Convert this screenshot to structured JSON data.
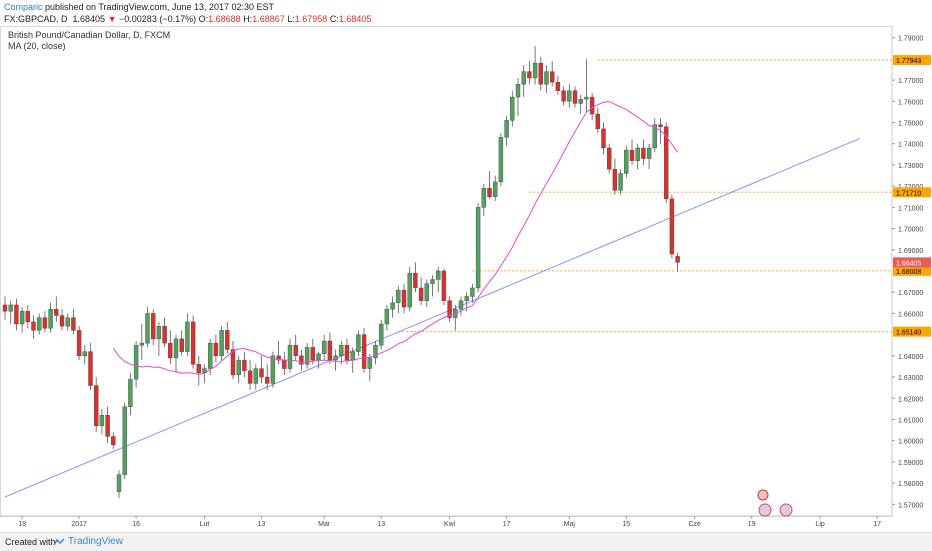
{
  "header": {
    "publisher": "Comparic",
    "published_text": " published on TradingView.com, June 13, 2017 02:30 EST",
    "symbol": "FX:GBPCAD, D",
    "last": "1.68405",
    "arrow": "▼",
    "change": "−0.00283 (−0.17%)",
    "open_label": "O:",
    "open": "1.68688",
    "high_label": "H:",
    "high": "1.68867",
    "low_label": "L:",
    "low": "1.67958",
    "close_label": "C:",
    "close": "1.68405"
  },
  "legend": {
    "title": "British Pound/Canadian Dollar, D, FXCM",
    "ma": "MA (20, close)"
  },
  "footer": {
    "created_with": "Created with",
    "brand": "TradingView"
  },
  "colors": {
    "up": "#53a060",
    "down": "#d6332c",
    "ma": "#e24cd6",
    "trend": "#8c8cff",
    "level": "#f5a623",
    "level_label_bg": "#ffa500",
    "last_label_bg": "#e95c55"
  },
  "chart_data": {
    "type": "candlestick",
    "symbol": "FX:GBPCAD",
    "x_ticks": [
      "19",
      "2017",
      "16",
      "Lut",
      "13",
      "Mar",
      "13",
      "Kwi",
      "17",
      "Maj",
      "15",
      "Cze",
      "19",
      "Lip",
      "17"
    ],
    "y_ticks": [
      "1.79000",
      "1.77000",
      "1.76000",
      "1.75000",
      "1.74000",
      "1.73000",
      "1.72000",
      "1.71000",
      "1.70000",
      "1.69000",
      "1.67000",
      "1.66000",
      "1.64000",
      "1.63000",
      "1.62000",
      "1.61000",
      "1.60000",
      "1.59000",
      "1.58000",
      "1.57000"
    ],
    "ylim": [
      1.5645,
      1.7955
    ],
    "level_lines": [
      {
        "value": 1.77943,
        "label": "1.77943"
      },
      {
        "value": 1.7171,
        "label": "1.71710"
      },
      {
        "value": 1.68008,
        "label": "1.68008"
      },
      {
        "value": 1.6514,
        "label": "1.65140"
      }
    ],
    "last_price": {
      "value": 1.68405,
      "label": "1.68405"
    },
    "trendline": {
      "from": {
        "day": 0,
        "value": 1.5735
      },
      "to": {
        "day": 150,
        "value": 1.7425
      }
    },
    "candles": [
      [
        1.664,
        1.668,
        1.657,
        1.661
      ],
      [
        1.661,
        1.666,
        1.655,
        1.664
      ],
      [
        1.664,
        1.667,
        1.652,
        1.655
      ],
      [
        1.655,
        1.663,
        1.651,
        1.661
      ],
      [
        1.661,
        1.664,
        1.653,
        1.656
      ],
      [
        1.656,
        1.659,
        1.648,
        1.652
      ],
      [
        1.652,
        1.66,
        1.65,
        1.658
      ],
      [
        1.658,
        1.661,
        1.651,
        1.653
      ],
      [
        1.653,
        1.665,
        1.651,
        1.662
      ],
      [
        1.662,
        1.668,
        1.656,
        1.659
      ],
      [
        1.659,
        1.662,
        1.652,
        1.654
      ],
      [
        1.654,
        1.66,
        1.652,
        1.658
      ],
      [
        1.658,
        1.662,
        1.65,
        1.652
      ],
      [
        1.652,
        1.654,
        1.638,
        1.64
      ],
      [
        1.64,
        1.645,
        1.636,
        1.642
      ],
      [
        1.642,
        1.646,
        1.624,
        1.626
      ],
      [
        1.626,
        1.63,
        1.604,
        1.607
      ],
      [
        1.607,
        1.615,
        1.603,
        1.612
      ],
      [
        1.612,
        1.616,
        1.599,
        1.602
      ],
      [
        1.602,
        1.604,
        1.596,
        1.598
      ],
      [
        1.576,
        1.586,
        1.573,
        1.584
      ],
      [
        1.584,
        1.618,
        1.582,
        1.616
      ],
      [
        1.616,
        1.632,
        1.612,
        1.629
      ],
      [
        1.629,
        1.647,
        1.625,
        1.645
      ],
      [
        1.645,
        1.655,
        1.638,
        1.646
      ],
      [
        1.646,
        1.663,
        1.644,
        1.66
      ],
      [
        1.66,
        1.662,
        1.645,
        1.648
      ],
      [
        1.648,
        1.656,
        1.64,
        1.654
      ],
      [
        1.654,
        1.658,
        1.644,
        1.646
      ],
      [
        1.646,
        1.652,
        1.636,
        1.639
      ],
      [
        1.639,
        1.65,
        1.632,
        1.648
      ],
      [
        1.648,
        1.652,
        1.64,
        1.642
      ],
      [
        1.642,
        1.66,
        1.64,
        1.656
      ],
      [
        1.656,
        1.659,
        1.634,
        1.636
      ],
      [
        1.636,
        1.64,
        1.626,
        1.632
      ],
      [
        1.632,
        1.636,
        1.627,
        1.634
      ],
      [
        1.634,
        1.648,
        1.631,
        1.646
      ],
      [
        1.646,
        1.65,
        1.637,
        1.64
      ],
      [
        1.64,
        1.654,
        1.638,
        1.652
      ],
      [
        1.652,
        1.656,
        1.641,
        1.643
      ],
      [
        1.643,
        1.647,
        1.629,
        1.631
      ],
      [
        1.631,
        1.64,
        1.627,
        1.638
      ],
      [
        1.638,
        1.642,
        1.63,
        1.633
      ],
      [
        1.633,
        1.638,
        1.624,
        1.627
      ],
      [
        1.627,
        1.636,
        1.624,
        1.634
      ],
      [
        1.634,
        1.64,
        1.627,
        1.63
      ],
      [
        1.63,
        1.636,
        1.624,
        1.627
      ],
      [
        1.627,
        1.642,
        1.625,
        1.64
      ],
      [
        1.64,
        1.647,
        1.636,
        1.638
      ],
      [
        1.638,
        1.642,
        1.631,
        1.634
      ],
      [
        1.634,
        1.648,
        1.632,
        1.645
      ],
      [
        1.645,
        1.65,
        1.638,
        1.64
      ],
      [
        1.64,
        1.643,
        1.633,
        1.636
      ],
      [
        1.636,
        1.646,
        1.634,
        1.644
      ],
      [
        1.644,
        1.648,
        1.636,
        1.638
      ],
      [
        1.638,
        1.642,
        1.634,
        1.641
      ],
      [
        1.641,
        1.65,
        1.638,
        1.647
      ],
      [
        1.647,
        1.651,
        1.636,
        1.638
      ],
      [
        1.638,
        1.643,
        1.633,
        1.64
      ],
      [
        1.64,
        1.647,
        1.636,
        1.645
      ],
      [
        1.645,
        1.648,
        1.636,
        1.638
      ],
      [
        1.638,
        1.644,
        1.632,
        1.642
      ],
      [
        1.642,
        1.652,
        1.64,
        1.65
      ],
      [
        1.65,
        1.653,
        1.632,
        1.634
      ],
      [
        1.634,
        1.641,
        1.628,
        1.639
      ],
      [
        1.639,
        1.647,
        1.636,
        1.645
      ],
      [
        1.645,
        1.657,
        1.643,
        1.655
      ],
      [
        1.655,
        1.664,
        1.652,
        1.662
      ],
      [
        1.662,
        1.668,
        1.658,
        1.665
      ],
      [
        1.665,
        1.673,
        1.66,
        1.671
      ],
      [
        1.671,
        1.674,
        1.66,
        1.663
      ],
      [
        1.663,
        1.682,
        1.661,
        1.679
      ],
      [
        1.679,
        1.684,
        1.67,
        1.672
      ],
      [
        1.672,
        1.677,
        1.664,
        1.666
      ],
      [
        1.666,
        1.676,
        1.663,
        1.674
      ],
      [
        1.674,
        1.678,
        1.668,
        1.676
      ],
      [
        1.676,
        1.682,
        1.67,
        1.68
      ],
      [
        1.68,
        1.681,
        1.664,
        1.666
      ],
      [
        1.666,
        1.668,
        1.656,
        1.658
      ],
      [
        1.658,
        1.664,
        1.652,
        1.662
      ],
      [
        1.662,
        1.668,
        1.659,
        1.666
      ],
      [
        1.666,
        1.67,
        1.661,
        1.668
      ],
      [
        1.668,
        1.674,
        1.665,
        1.672
      ],
      [
        1.672,
        1.712,
        1.67,
        1.71
      ],
      [
        1.71,
        1.721,
        1.706,
        1.719
      ],
      [
        1.719,
        1.727,
        1.714,
        1.715
      ],
      [
        1.715,
        1.725,
        1.713,
        1.722
      ],
      [
        1.722,
        1.745,
        1.72,
        1.743
      ],
      [
        1.743,
        1.753,
        1.739,
        1.751
      ],
      [
        1.751,
        1.765,
        1.748,
        1.762
      ],
      [
        1.762,
        1.771,
        1.753,
        1.768
      ],
      [
        1.768,
        1.777,
        1.762,
        1.774
      ],
      [
        1.774,
        1.779,
        1.768,
        1.771
      ],
      [
        1.771,
        1.786,
        1.768,
        1.778
      ],
      [
        1.778,
        1.781,
        1.765,
        1.768
      ],
      [
        1.768,
        1.777,
        1.764,
        1.774
      ],
      [
        1.774,
        1.779,
        1.767,
        1.769
      ],
      [
        1.769,
        1.772,
        1.763,
        1.765
      ],
      [
        1.765,
        1.767,
        1.758,
        1.76
      ],
      [
        1.76,
        1.768,
        1.757,
        1.765
      ],
      [
        1.765,
        1.767,
        1.757,
        1.759
      ],
      [
        1.759,
        1.763,
        1.754,
        1.761
      ],
      [
        1.761,
        1.78,
        1.755,
        1.762
      ],
      [
        1.762,
        1.764,
        1.751,
        1.754
      ],
      [
        1.754,
        1.757,
        1.745,
        1.747
      ],
      [
        1.747,
        1.75,
        1.735,
        1.738
      ],
      [
        1.738,
        1.74,
        1.726,
        1.728
      ],
      [
        1.728,
        1.733,
        1.716,
        1.718
      ],
      [
        1.718,
        1.728,
        1.716,
        1.726
      ],
      [
        1.726,
        1.739,
        1.724,
        1.737
      ],
      [
        1.737,
        1.742,
        1.73,
        1.732
      ],
      [
        1.732,
        1.74,
        1.728,
        1.738
      ],
      [
        1.738,
        1.742,
        1.73,
        1.733
      ],
      [
        1.733,
        1.74,
        1.728,
        1.738
      ],
      [
        1.738,
        1.752,
        1.736,
        1.749
      ],
      [
        1.749,
        1.752,
        1.74,
        1.748
      ],
      [
        1.748,
        1.75,
        1.712,
        1.714
      ],
      [
        1.714,
        1.716,
        1.686,
        1.688
      ],
      [
        1.68688,
        1.68867,
        1.67958,
        1.68405
      ]
    ],
    "ma_label": "MA (20, close)",
    "grid": false
  }
}
